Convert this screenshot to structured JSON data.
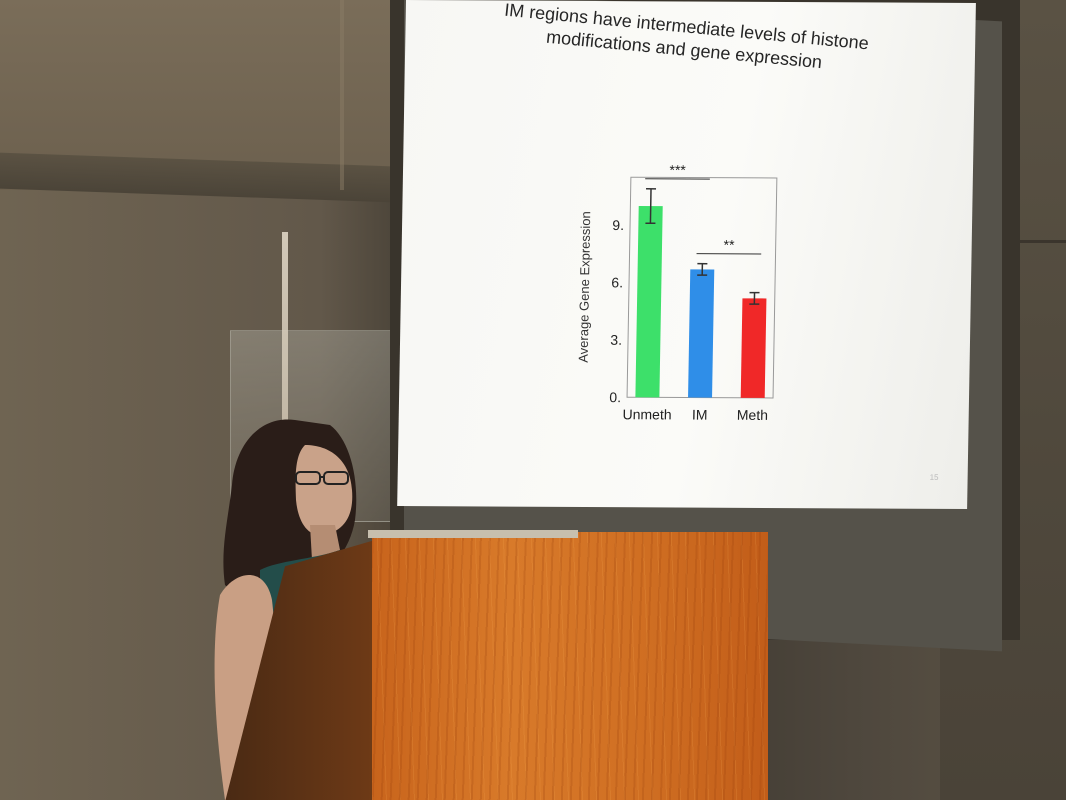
{
  "slide": {
    "title": "IM regions have intermediate levels of histone\nmodifications and gene expression",
    "page_number": "15"
  },
  "chart_data": {
    "type": "bar",
    "categories": [
      "Unmeth",
      "IM",
      "Meth"
    ],
    "values": [
      10.0,
      6.7,
      5.2
    ],
    "errors": [
      0.9,
      0.3,
      0.3
    ],
    "colors": [
      "#3de06a",
      "#2f8ee8",
      "#f02828"
    ],
    "ylabel": "Average Gene Expression",
    "yticks": [
      "0.",
      "3.",
      "6.",
      "9."
    ],
    "ytick_values": [
      0,
      3,
      6,
      9
    ],
    "ylim": [
      0,
      11.5
    ],
    "significance": [
      {
        "label": "***",
        "from": "Unmeth",
        "to": "IM"
      },
      {
        "label": "**",
        "from": "IM",
        "to": "Meth"
      }
    ]
  },
  "colors": {
    "podium": "#d87a2a",
    "slide_background": "#f8f8f5"
  }
}
